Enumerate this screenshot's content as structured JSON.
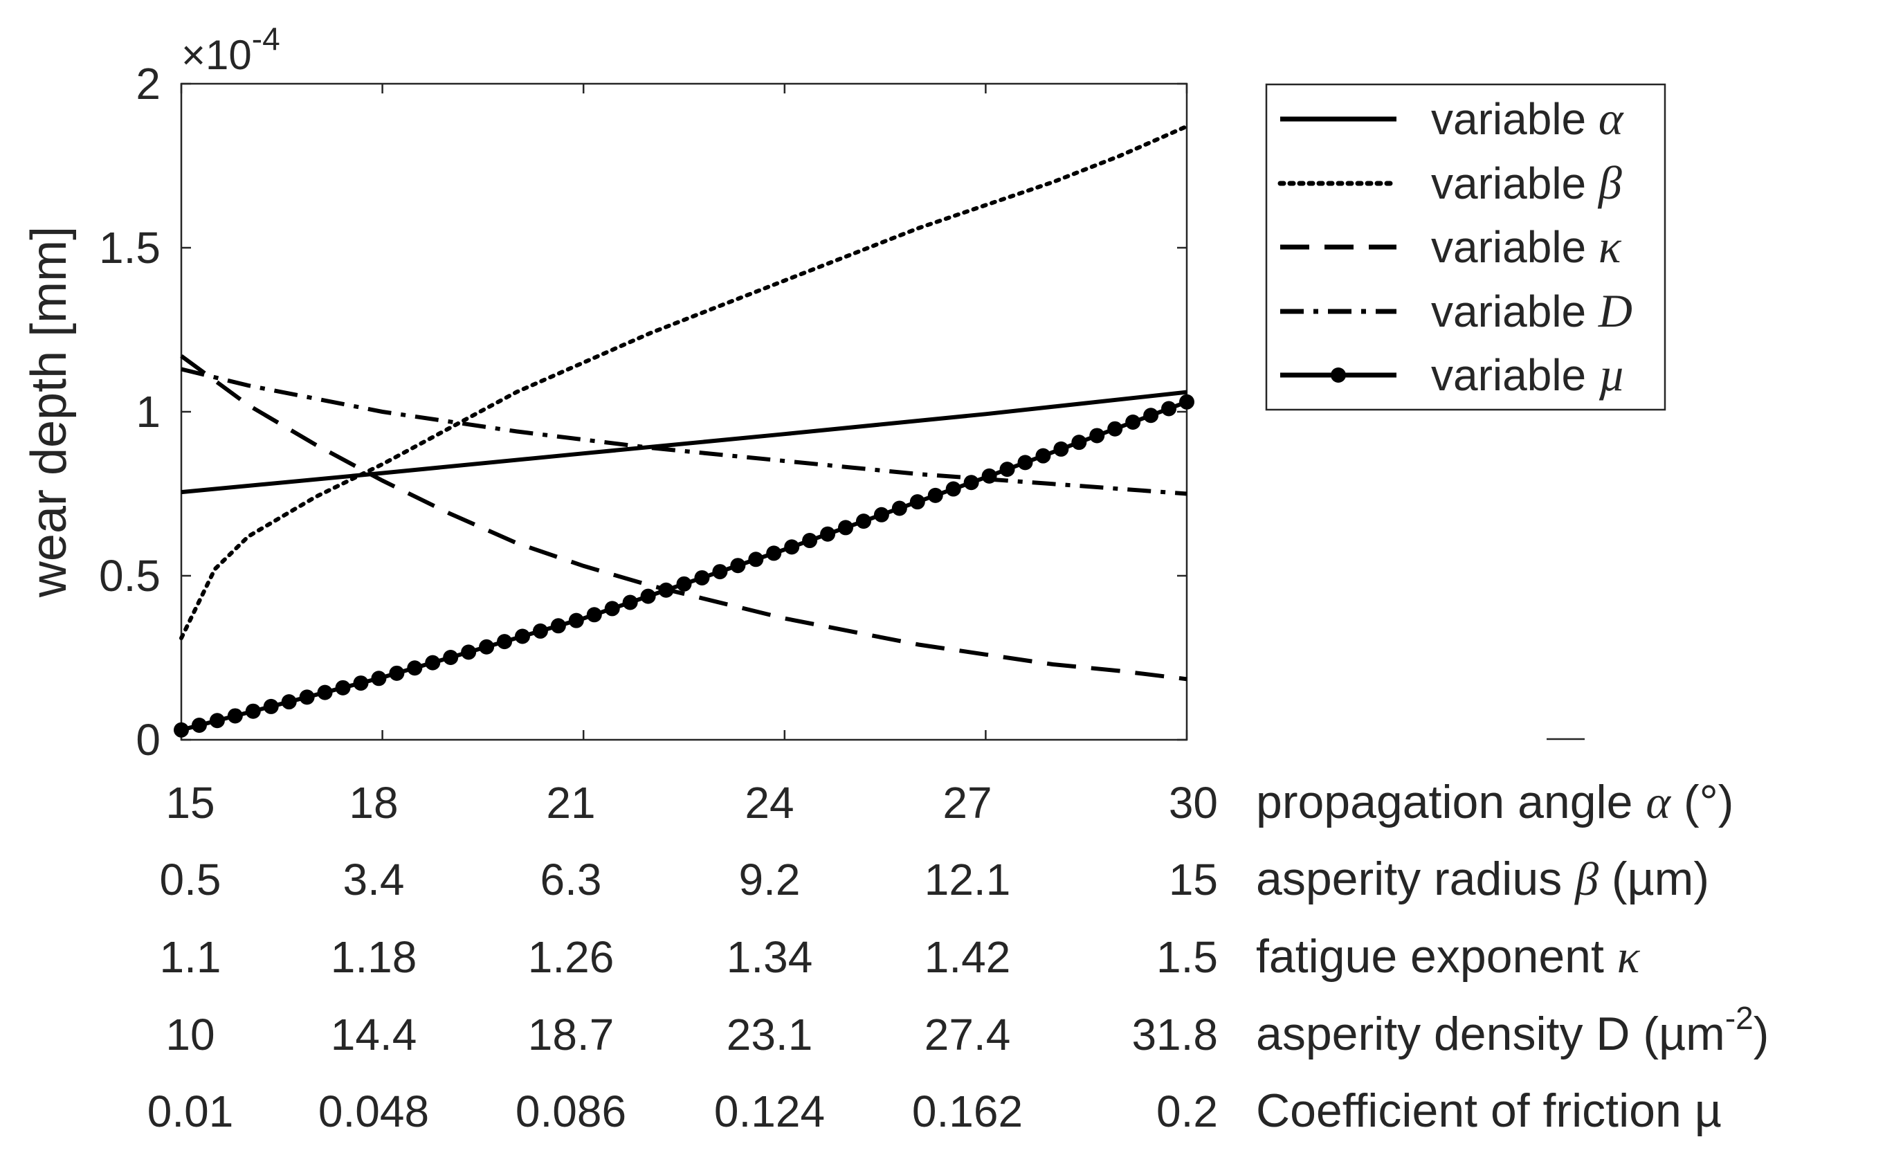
{
  "chart_data": {
    "type": "line",
    "ylabel": "wear depth [mm]",
    "y_exponent": "×10",
    "y_exponent_power": "-4",
    "ylim": [
      0,
      2
    ],
    "yticks": [
      0,
      0.5,
      1,
      1.5,
      2
    ],
    "ytick_labels": [
      "0",
      "0.5",
      "1",
      "1.5",
      "2"
    ],
    "xlim": [
      15,
      30
    ],
    "xticks": [
      15,
      18,
      21,
      24,
      27,
      30
    ],
    "x_axes": [
      {
        "title": "propagation angle",
        "symbol": "α",
        "unit": " (°)",
        "ticks": [
          "15",
          "18",
          "21",
          "24",
          "27",
          "30"
        ]
      },
      {
        "title": "asperity radius",
        "symbol": "β",
        "unit": " (µm)",
        "ticks": [
          "0.5",
          "3.4",
          "6.3",
          "9.2",
          "12.1",
          "15"
        ]
      },
      {
        "title": "fatigue exponent",
        "symbol": "κ",
        "unit": "",
        "ticks": [
          "1.1",
          "1.18",
          "1.26",
          "1.34",
          "1.42",
          "1.5"
        ]
      },
      {
        "title": "asperity density D (µm",
        "symbol": "",
        "unit": "",
        "sup": "-2",
        "after": ")",
        "ticks": [
          "10",
          "14.4",
          "18.7",
          "23.1",
          "27.4",
          "31.8"
        ]
      },
      {
        "title": "Coefficient of friction µ",
        "symbol": "",
        "unit": "",
        "ticks": [
          "0.01",
          "0.048",
          "0.086",
          "0.124",
          "0.162",
          "0.2"
        ]
      }
    ],
    "legend_position": "outside-right-top",
    "series": [
      {
        "name": "variable α",
        "prefix": "variable ",
        "symbol": "α",
        "style": "solid",
        "color": "#000000",
        "x": [
          15,
          18,
          21,
          24,
          27,
          30
        ],
        "y": [
          0.755,
          0.813,
          0.873,
          0.932,
          0.993,
          1.06
        ]
      },
      {
        "name": "variable β",
        "prefix": "variable ",
        "symbol": "β",
        "style": "dotted",
        "color": "#000000",
        "x": [
          15,
          15.5,
          16,
          17,
          18,
          19,
          20,
          21,
          22,
          23,
          24,
          25,
          26,
          27,
          28,
          29,
          30
        ],
        "y": [
          0.31,
          0.52,
          0.62,
          0.74,
          0.84,
          0.95,
          1.06,
          1.15,
          1.24,
          1.32,
          1.4,
          1.48,
          1.56,
          1.63,
          1.7,
          1.78,
          1.87
        ]
      },
      {
        "name": "variable κ",
        "prefix": "variable ",
        "symbol": "κ",
        "style": "dashed",
        "color": "#000000",
        "x": [
          15,
          16,
          17,
          18,
          19,
          20,
          21,
          22,
          23,
          24,
          25,
          26,
          27,
          28,
          29,
          30
        ],
        "y": [
          1.17,
          1.02,
          0.9,
          0.79,
          0.69,
          0.6,
          0.53,
          0.47,
          0.42,
          0.37,
          0.33,
          0.29,
          0.26,
          0.23,
          0.21,
          0.185
        ]
      },
      {
        "name": "variable D",
        "prefix": "variable ",
        "symbol": "D",
        "style": "dashdot",
        "color": "#000000",
        "x": [
          15,
          16,
          17,
          18,
          19,
          20,
          21,
          22,
          23,
          24,
          25,
          26,
          27,
          28,
          29,
          30
        ],
        "y": [
          1.13,
          1.08,
          1.04,
          1.0,
          0.97,
          0.94,
          0.915,
          0.89,
          0.87,
          0.85,
          0.83,
          0.81,
          0.795,
          0.78,
          0.765,
          0.75
        ]
      },
      {
        "name": "variable µ",
        "prefix": "variable ",
        "symbol": "µ",
        "style": "solid-markers",
        "color": "#000000",
        "x": [
          15,
          18,
          21,
          24,
          27,
          30
        ],
        "y": [
          0.03,
          0.19,
          0.37,
          0.58,
          0.8,
          1.03
        ]
      }
    ]
  }
}
